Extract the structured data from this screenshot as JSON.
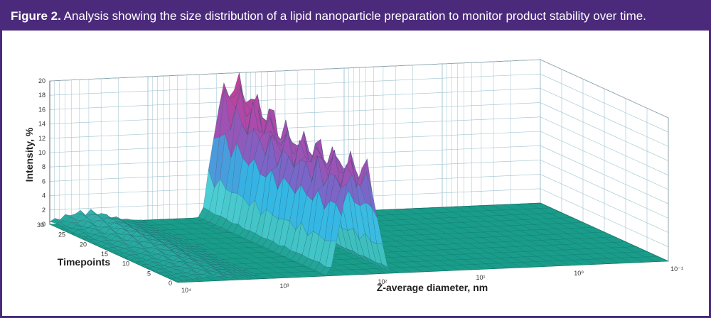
{
  "caption": {
    "label": "Figure 2.",
    "text": "Analysis showing the size distribution of a lipid nanoparticle preparation to monitor product stability over time."
  },
  "chart_data": {
    "type": "surface3d",
    "title": "",
    "xlabel": "Z-average diameter, nm",
    "ylabel": "Timepoints",
    "zlabel": "Intensity, %",
    "x_scale": "log",
    "x_ticks": [
      "10⁴",
      "10³",
      "10²",
      "10¹",
      "10⁰",
      "10⁻¹"
    ],
    "x_tick_values": [
      10000,
      1000,
      100,
      10,
      1,
      0.1
    ],
    "y_ticks": [
      "0",
      "5",
      "10",
      "15",
      "20",
      "25",
      "30"
    ],
    "y_tick_values": [
      0,
      5,
      10,
      15,
      20,
      25,
      30
    ],
    "z_ticks": [
      "0",
      "2",
      "4",
      "6",
      "8",
      "10",
      "12",
      "14",
      "16",
      "18",
      "20"
    ],
    "z_tick_values": [
      0,
      2,
      4,
      6,
      8,
      10,
      12,
      14,
      16,
      18,
      20
    ],
    "xlim": [
      10000,
      0.1
    ],
    "ylim": [
      0,
      30
    ],
    "zlim": [
      0,
      20
    ],
    "grid": true,
    "peak": {
      "diameter_nm_range": [
        80,
        250
      ],
      "max_intensity_percent": 18,
      "typical_intensity_percent": 14
    },
    "secondary_feature": {
      "diameter_nm_range": [
        2000,
        10000
      ],
      "max_intensity_percent": 1.5
    },
    "colormap": [
      "#1a9c8a",
      "#4fd0d8",
      "#33b5e5",
      "#7a66c8",
      "#a54db0",
      "#c43f9a"
    ],
    "colors": {
      "frame": "#4b2a7c",
      "grid": "#9ec3d0",
      "floor": "#1a9c8a"
    }
  }
}
